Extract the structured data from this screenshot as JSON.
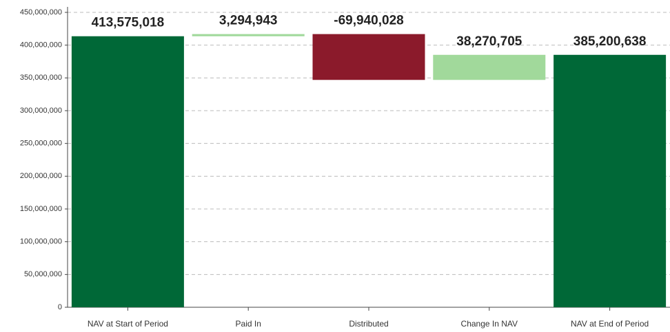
{
  "chart_data": {
    "type": "waterfall",
    "categories": [
      "NAV at Start of Period",
      "Paid In",
      "Distributed",
      "Change In NAV",
      "NAV at End of Period"
    ],
    "values": [
      413575018,
      3294943,
      -69940028,
      38270705,
      385200638
    ],
    "value_labels": [
      "413,575,018",
      "3,294,943",
      "-69,940,028",
      "38,270,705",
      "385,200,638"
    ],
    "measure": [
      "absolute",
      "relative",
      "relative",
      "relative",
      "total"
    ],
    "colors": {
      "total": "#006837",
      "increase": "#a1d99b",
      "decrease": "#8b1a2b"
    },
    "ylim": [
      0,
      450000000
    ],
    "yticks": [
      0,
      {
        "value": 50000000,
        "label": "50,000,000"
      },
      {
        "value": 100000000,
        "label": "100,000,000"
      },
      {
        "value": 150000000,
        "label": "150,000,000"
      },
      {
        "value": 200000000,
        "label": "200,000,000"
      },
      {
        "value": 250000000,
        "label": "250,000,000"
      },
      {
        "value": 300000000,
        "label": "300,000,000"
      },
      {
        "value": 350000000,
        "label": "350,000,000"
      },
      {
        "value": 400000000,
        "label": "400,000,000"
      },
      {
        "value": 450000000,
        "label": "450,000,000"
      }
    ],
    "grid": true
  }
}
